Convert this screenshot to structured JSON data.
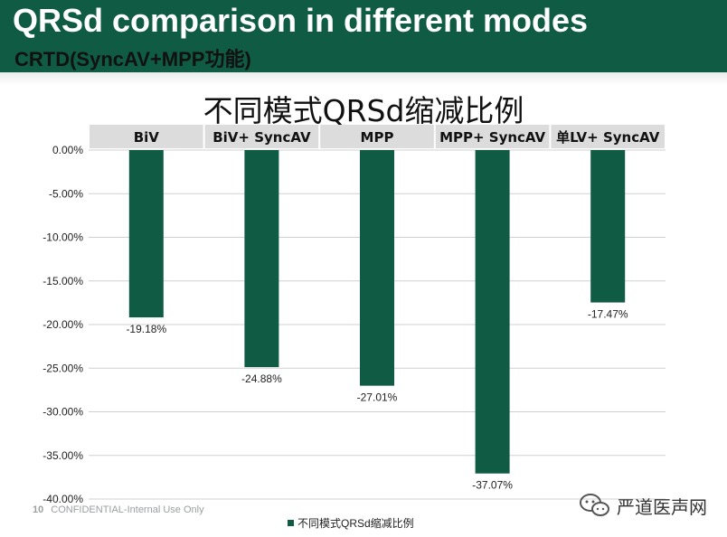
{
  "slide": {
    "title": "QRSd comparison in different modes",
    "subtitle": "CRTD(SyncAV+MPP功能)",
    "footer_page": "10",
    "footer_text": "CONFIDENTIAL-Internal Use Only",
    "watermark_text": "严道医声网"
  },
  "colors": {
    "accent": "#0f5b44",
    "header_cell": "#dcdcdc"
  },
  "chart_data": {
    "type": "bar",
    "title": "不同模式QRSd缩减比例",
    "categories": [
      "BiV",
      "BiV+  SyncAV",
      "MPP",
      "MPP+ SyncAV",
      "单LV+ SyncAV"
    ],
    "series": [
      {
        "name": "不同模式QRSd缩减比例",
        "values": [
          -19.18,
          -24.88,
          -27.01,
          -37.07,
          -17.47
        ]
      }
    ],
    "data_labels": [
      "-19.18%",
      "-24.88%",
      "-27.01%",
      "-37.07%",
      "-17.47%"
    ],
    "ylim": [
      -40,
      0
    ],
    "yticks": [
      0,
      -5,
      -10,
      -15,
      -20,
      -25,
      -30,
      -35,
      -40
    ],
    "ytick_labels": [
      "0.00%",
      "-5.00%",
      "-10.00%",
      "-15.00%",
      "-20.00%",
      "-25.00%",
      "-30.00%",
      "-35.00%",
      "-40.00%"
    ],
    "grid": true,
    "legend_position": "bottom",
    "category_axis_position": "top"
  }
}
